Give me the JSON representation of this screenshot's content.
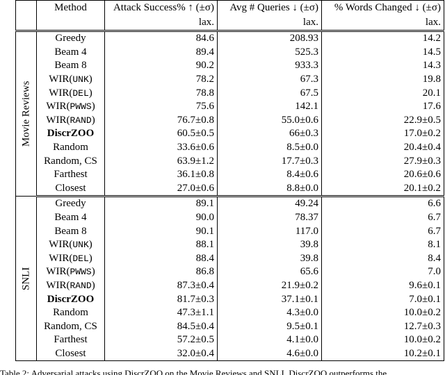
{
  "table": {
    "header": [
      "Method",
      "Attack Success% ↑ (±σ)",
      "Avg # Queries ↓ (±σ)",
      "% Words Changed ↓ (±σ)"
    ],
    "subheader": [
      "lax.",
      "lax.",
      "lax."
    ],
    "bold_row": 7,
    "sections": [
      {
        "label": "Movie Reviews",
        "rows": [
          [
            "Greedy",
            "84.6",
            "208.93",
            "14.2"
          ],
          [
            "Beam 4",
            "89.4",
            "525.3",
            "14.5"
          ],
          [
            "Beam 8",
            "90.2",
            "933.3",
            "14.3"
          ],
          [
            "WIR(UNK)",
            "78.2",
            "67.3",
            "19.8"
          ],
          [
            "WIR(DEL)",
            "78.8",
            "67.5",
            "20.1"
          ],
          [
            "WIR(PWWS)",
            "75.6",
            "142.1",
            "17.6"
          ],
          [
            "WIR(RAND)",
            "76.7±0.8",
            "55.0±0.6",
            "22.9±0.5"
          ],
          [
            "DiscrZOO",
            "60.5±0.5",
            "66±0.3",
            "17.0±0.2"
          ],
          [
            "Random",
            "33.6±0.6",
            "8.5±0.0",
            "20.4±0.4"
          ],
          [
            "Random, CS",
            "63.9±1.2",
            "17.7±0.3",
            "27.9±0.3"
          ],
          [
            "Farthest",
            "36.1±0.8",
            "8.4±0.6",
            "20.6±0.6"
          ],
          [
            "Closest",
            "27.0±0.6",
            "8.8±0.0",
            "20.1±0.2"
          ]
        ]
      },
      {
        "label": "SNLI",
        "rows": [
          [
            "Greedy",
            "89.1",
            "49.24",
            "6.6"
          ],
          [
            "Beam 4",
            "90.0",
            "78.37",
            "6.7"
          ],
          [
            "Beam 8",
            "90.1",
            "117.0",
            "6.7"
          ],
          [
            "WIR(UNK)",
            "88.1",
            "39.8",
            "8.1"
          ],
          [
            "WIR(DEL)",
            "88.4",
            "39.8",
            "8.4"
          ],
          [
            "WIR(PWWS)",
            "86.8",
            "65.6",
            "7.0"
          ],
          [
            "WIR(RAND)",
            "87.3±0.4",
            "21.9±0.2",
            "9.6±0.1"
          ],
          [
            "DiscrZOO",
            "81.7±0.3",
            "37.1±0.1",
            "7.0±0.1"
          ],
          [
            "Random",
            "47.3±1.1",
            "4.3±0.0",
            "10.0±0.2"
          ],
          [
            "Random, CS",
            "84.5±0.4",
            "9.5±0.1",
            "12.7±0.3"
          ],
          [
            "Farthest",
            "57.2±0.5",
            "4.1±0.0",
            "10.0±0.2"
          ],
          [
            "Closest",
            "32.0±0.4",
            "4.6±0.0",
            "10.2±0.1"
          ]
        ]
      }
    ]
  },
  "caption": "Table 2: Adversarial attacks using DiscrZOO on the Movie Reviews and SNLI. DiscrZOO outperforms the"
}
